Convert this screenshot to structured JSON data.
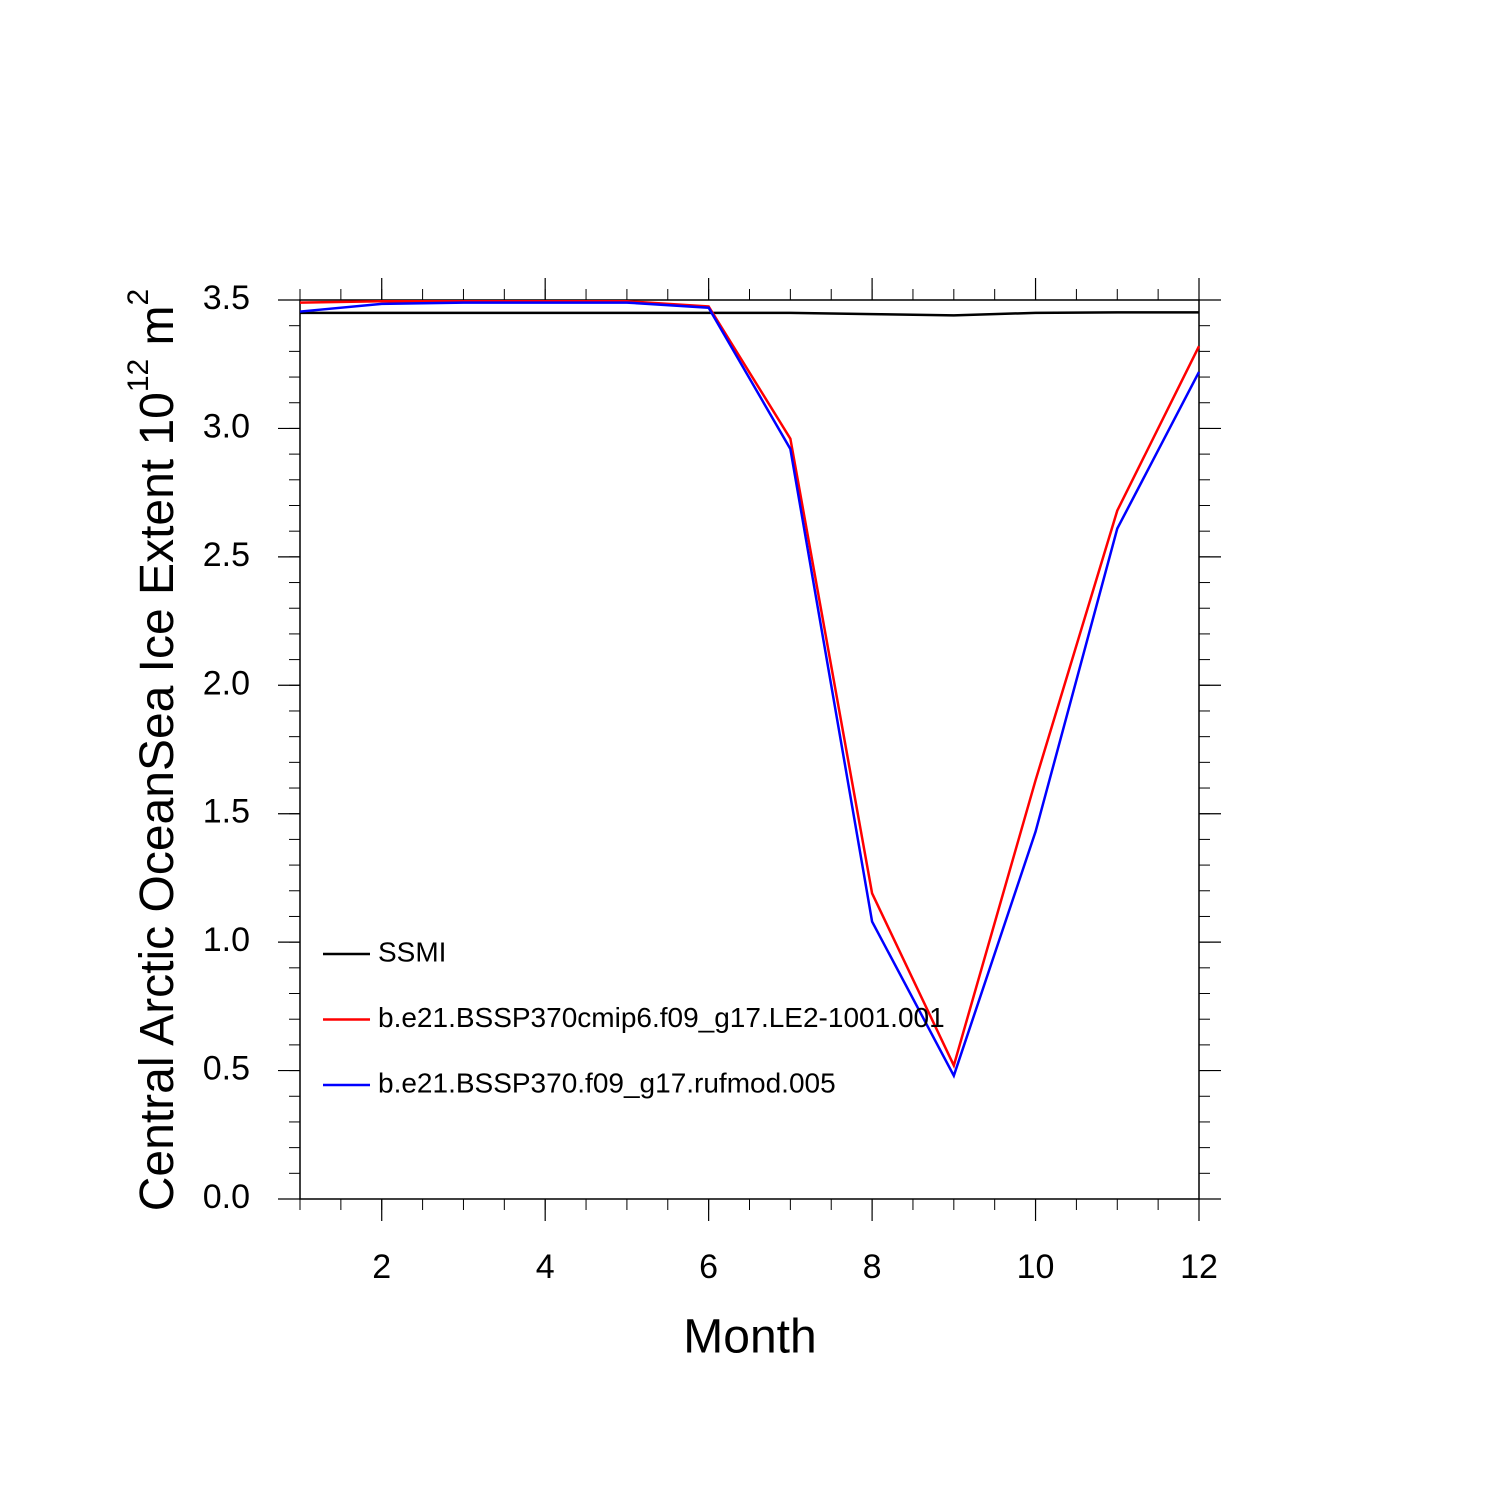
{
  "chart_data": {
    "type": "line",
    "xlabel": "Month",
    "ylabel": {
      "text": "Central Arctic OceanSea Ice Extent 10",
      "exp": "12",
      "unit": " m",
      "unit_exp": "2"
    },
    "x": [
      1,
      2,
      3,
      4,
      5,
      6,
      7,
      8,
      9,
      10,
      11,
      12
    ],
    "series": [
      {
        "name": "SSMI",
        "color": "#000000",
        "values": [
          3.45,
          3.45,
          3.45,
          3.45,
          3.45,
          3.45,
          3.45,
          3.445,
          3.44,
          3.45,
          3.452,
          3.452
        ]
      },
      {
        "name": "b.e21.BSSP370cmip6.f09_g17.LE2-1001.001",
        "color": "#ff0000",
        "values": [
          3.49,
          3.495,
          3.495,
          3.495,
          3.495,
          3.475,
          2.96,
          1.19,
          0.52,
          1.63,
          2.68,
          3.32
        ]
      },
      {
        "name": "b.e21.BSSP370.f09_g17.rufmod.005",
        "color": "#0000ff",
        "values": [
          3.455,
          3.485,
          3.49,
          3.49,
          3.49,
          3.47,
          2.92,
          1.08,
          0.48,
          1.43,
          2.61,
          3.22
        ]
      }
    ],
    "xlim": [
      1,
      12
    ],
    "xticks": [
      2,
      4,
      6,
      8,
      10,
      12
    ],
    "xminor_step": 0.5,
    "ylim": [
      0,
      3.5
    ],
    "yticks": [
      {
        "value": 0,
        "label": "0.0"
      },
      0.5,
      {
        "value": 1,
        "label": "1.0"
      },
      1.5,
      {
        "value": 2,
        "label": "2.0"
      },
      2.5,
      {
        "value": 3,
        "label": "3.0"
      },
      3.5
    ],
    "yminor_step": 0.1,
    "legend": "lower left"
  }
}
